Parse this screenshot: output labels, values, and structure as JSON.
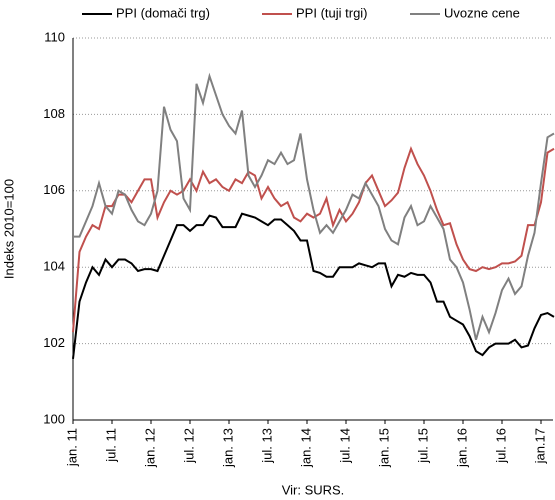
{
  "chart_data": {
    "type": "line",
    "y_label": "Indeks 2010=100",
    "source": "Vir: SURS.",
    "categories": [
      "jan. 11",
      null,
      null,
      null,
      null,
      null,
      "jul. 11",
      null,
      null,
      null,
      null,
      null,
      "jan. 12",
      null,
      null,
      null,
      null,
      null,
      "jul. 12",
      null,
      null,
      null,
      null,
      null,
      "jan. 13",
      null,
      null,
      null,
      null,
      null,
      "jul. 13",
      null,
      null,
      null,
      null,
      null,
      "jan. 14",
      null,
      null,
      null,
      null,
      null,
      "jul. 14",
      null,
      null,
      null,
      null,
      null,
      "jan. 15",
      null,
      null,
      null,
      null,
      null,
      "jul. 15",
      null,
      null,
      null,
      null,
      null,
      "jan. 16",
      null,
      null,
      null,
      null,
      null,
      "jul. 16",
      null,
      null,
      null,
      null,
      null,
      "jan.17",
      null,
      null
    ],
    "series": [
      {
        "name": "PPI (domači trg)",
        "color": "#000000",
        "values": [
          101.6,
          103.1,
          103.6,
          104.0,
          103.8,
          104.2,
          104.0,
          104.2,
          104.2,
          104.1,
          103.9,
          103.95,
          103.95,
          103.9,
          104.3,
          104.7,
          105.1,
          105.1,
          104.95,
          105.1,
          105.1,
          105.35,
          105.3,
          105.05,
          105.05,
          105.05,
          105.4,
          105.35,
          105.3,
          105.2,
          105.1,
          105.25,
          105.25,
          105.1,
          104.95,
          104.7,
          104.7,
          103.9,
          103.85,
          103.75,
          103.75,
          104.0,
          104.0,
          104.0,
          104.1,
          104.05,
          104.0,
          104.1,
          104.1,
          103.5,
          103.8,
          103.75,
          103.85,
          103.8,
          103.8,
          103.6,
          103.1,
          103.1,
          102.7,
          102.6,
          102.5,
          102.2,
          101.8,
          101.7,
          101.9,
          102.0,
          102.0,
          102.0,
          102.1,
          101.9,
          101.95,
          102.4,
          102.75,
          102.8,
          102.7
        ]
      },
      {
        "name": "PPI (tuji trgi)",
        "color": "#c0504d",
        "values": [
          102.3,
          104.4,
          104.8,
          105.1,
          105.0,
          105.6,
          105.6,
          105.9,
          105.9,
          105.7,
          106.0,
          106.3,
          106.3,
          105.3,
          105.7,
          106.0,
          105.9,
          106.0,
          106.3,
          106.0,
          106.5,
          106.2,
          106.3,
          106.1,
          106.0,
          106.3,
          106.2,
          106.5,
          106.4,
          105.8,
          106.1,
          105.8,
          105.6,
          105.7,
          105.3,
          105.2,
          105.4,
          105.3,
          105.4,
          105.8,
          105.1,
          105.5,
          105.2,
          105.4,
          105.7,
          106.2,
          106.4,
          106.0,
          105.6,
          105.75,
          105.95,
          106.6,
          107.1,
          106.7,
          106.4,
          106.0,
          105.5,
          105.1,
          105.15,
          104.6,
          104.2,
          103.95,
          103.9,
          104.0,
          103.95,
          104.0,
          104.1,
          104.1,
          104.15,
          104.3,
          105.1,
          105.1,
          105.7,
          107.0,
          107.1
        ]
      },
      {
        "name": "Uvozne cene",
        "color": "#808080",
        "values": [
          104.8,
          104.8,
          105.2,
          105.6,
          106.2,
          105.6,
          105.4,
          106.0,
          105.9,
          105.5,
          105.2,
          105.1,
          105.4,
          106.0,
          108.2,
          107.6,
          107.3,
          105.8,
          105.5,
          108.8,
          108.3,
          109.0,
          108.5,
          108.0,
          107.7,
          107.5,
          108.1,
          106.4,
          106.1,
          106.4,
          106.8,
          106.7,
          107.0,
          106.7,
          106.8,
          107.5,
          106.3,
          105.5,
          104.9,
          105.1,
          104.9,
          105.2,
          105.5,
          105.9,
          105.8,
          106.2,
          105.9,
          105.6,
          105.0,
          104.7,
          104.6,
          105.3,
          105.6,
          105.1,
          105.2,
          105.6,
          105.3,
          105.0,
          104.2,
          104.0,
          103.6,
          102.9,
          102.1,
          102.7,
          102.3,
          102.8,
          103.4,
          103.7,
          103.3,
          103.5,
          104.3,
          104.9,
          106.2,
          107.4,
          107.5
        ]
      }
    ],
    "ylim": [
      100,
      110
    ],
    "yticks": [
      100,
      102,
      104,
      106,
      108,
      110
    ],
    "grid": true
  }
}
